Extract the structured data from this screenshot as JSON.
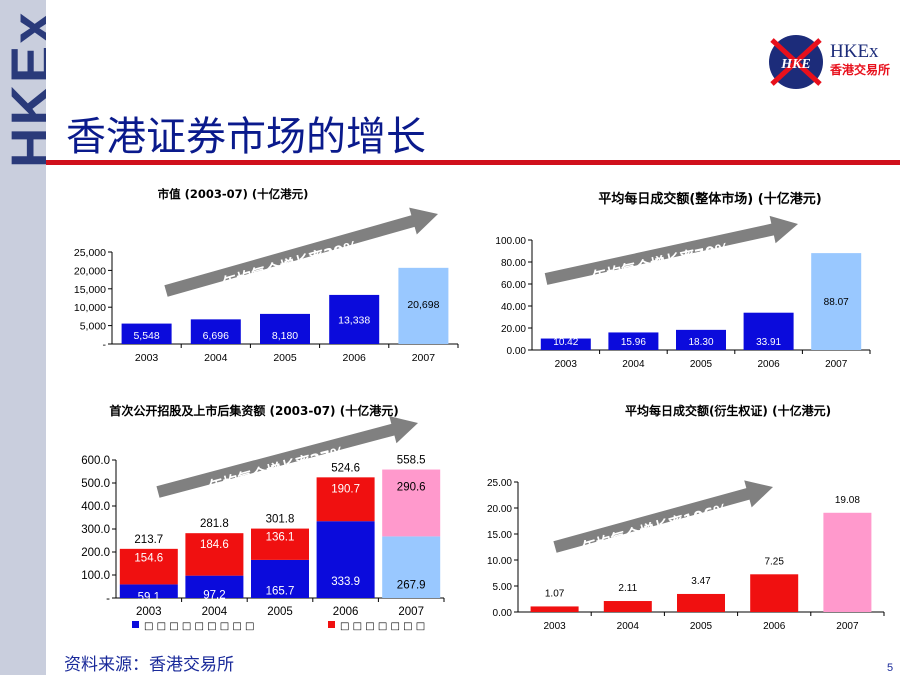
{
  "side_brand": "HKEx",
  "logo": {
    "mark": "HKE",
    "name": "HKEx",
    "name_sub": "香港交易所"
  },
  "page_title": "香港证券市场的增长",
  "source": "资料来源：香港交易所",
  "page_number": "5",
  "colors": {
    "title": "#0a1a8c",
    "rule": "#d0101c",
    "blue": "#0b0bdc",
    "light_blue": "#99c8ff",
    "red": "#f01010",
    "pink": "#ff99cc",
    "arrow": "#808080"
  },
  "chart_data": [
    {
      "type": "bar",
      "title": "市值 (2003-07) (十亿港元)",
      "categories": [
        "2003",
        "2004",
        "2005",
        "2006",
        "2007"
      ],
      "values": [
        5548,
        6696,
        8180,
        13338,
        20698
      ],
      "value_labels": [
        "5,548",
        "6,696",
        "8,180",
        "13,338",
        "20,698"
      ],
      "ylim": [
        0,
        25000
      ],
      "yticks": [
        "-",
        "5,000",
        "10,000",
        "15,000",
        "20,000",
        "25,000"
      ],
      "colors": [
        "#0b0bdc",
        "#0b0bdc",
        "#0b0bdc",
        "#0b0bdc",
        "#99c8ff"
      ],
      "arrow_label": "年均复合增长率39%"
    },
    {
      "type": "bar",
      "title": "平均每日成交额(整体市场) (十亿港元)",
      "categories": [
        "2003",
        "2004",
        "2005",
        "2006",
        "2007"
      ],
      "values": [
        10.42,
        15.96,
        18.3,
        33.91,
        88.07
      ],
      "value_labels": [
        "10.42",
        "15.96",
        "18.30",
        "33.91",
        "88.07"
      ],
      "ylim": [
        0,
        100
      ],
      "yticks": [
        "0.00",
        "20.00",
        "40.00",
        "60.00",
        "80.00",
        "100.00"
      ],
      "colors": [
        "#0b0bdc",
        "#0b0bdc",
        "#0b0bdc",
        "#0b0bdc",
        "#99c8ff"
      ],
      "arrow_label": "年均复合增长率70%"
    },
    {
      "type": "bar",
      "stacked": true,
      "title": "首次公开招股及上市后集资额 (2003-07) (十亿港元)",
      "categories": [
        "2003",
        "2004",
        "2005",
        "2006",
        "2007"
      ],
      "series": [
        {
          "values": [
            59.1,
            97.2,
            165.7,
            333.9,
            267.9
          ],
          "labels": [
            "59.1",
            "97.2",
            "165.7",
            "333.9",
            "267.9"
          ]
        },
        {
          "values": [
            154.6,
            184.6,
            136.1,
            190.7,
            290.6
          ],
          "labels": [
            "154.6",
            "184.6",
            "136.1",
            "190.7",
            "290.6"
          ]
        }
      ],
      "totals": [
        "213.7",
        "281.8",
        "301.8",
        "524.6",
        "558.5"
      ],
      "ylim": [
        0,
        600
      ],
      "yticks": [
        "-",
        "100.0",
        "200.0",
        "300.0",
        "400.0",
        "500.0",
        "600.0"
      ],
      "series_colors": [
        [
          "#0b0bdc",
          "#0b0bdc",
          "#0b0bdc",
          "#0b0bdc",
          "#99c8ff"
        ],
        [
          "#f01010",
          "#f01010",
          "#f01010",
          "#f01010",
          "#ff99cc"
        ]
      ],
      "arrow_label": "年均复合增长率27%",
      "legend": [
        {
          "color": "#0b0bdc",
          "label": "□ □ □ □ □ □ □ □ □"
        },
        {
          "color": "#f01010",
          "label": "□ □ □ □ □ □ □"
        }
      ]
    },
    {
      "type": "bar",
      "title": "平均每日成交额(衍生权证) (十亿港元)",
      "categories": [
        "2003",
        "2004",
        "2005",
        "2006",
        "2007"
      ],
      "values": [
        1.07,
        2.11,
        3.47,
        7.25,
        19.08
      ],
      "value_labels": [
        "1.07",
        "2.11",
        "3.47",
        "7.25",
        "19.08"
      ],
      "ylim": [
        0,
        25
      ],
      "yticks": [
        "0.00",
        "5.00",
        "10.00",
        "15.00",
        "20.00",
        "25.00"
      ],
      "colors": [
        "#f01010",
        "#f01010",
        "#f01010",
        "#f01010",
        "#ff99cc"
      ],
      "arrow_label": "年均复合增长率106%"
    }
  ]
}
